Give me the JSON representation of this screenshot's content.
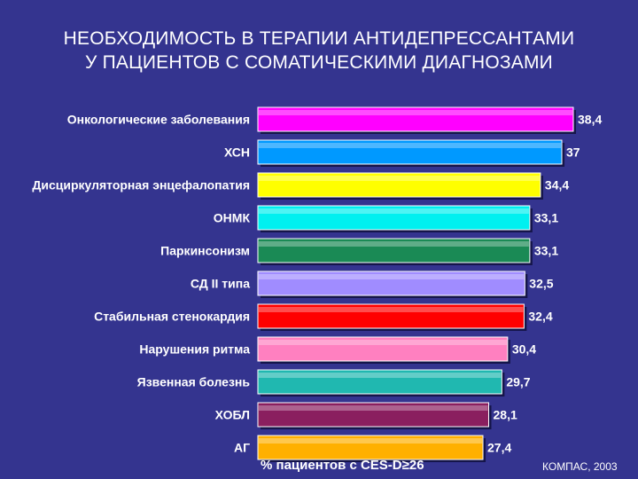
{
  "slide": {
    "title_line1": "НЕОБХОДИМОСТЬ В ТЕРАПИИ АНТИДЕПРЕССАНТАМИ",
    "title_line2": "У ПАЦИЕНТОВ С СОМАТИЧЕСКИМИ ДИАГНОЗАМИ",
    "source": "КОМПАС, 2003"
  },
  "chart_data": {
    "type": "bar",
    "orientation": "horizontal",
    "title": "НЕОБХОДИМОСТЬ В ТЕРАПИИ АНТИДЕПРЕССАНТАМИ У ПАЦИЕНТОВ С СОМАТИЧЕСКИМИ ДИАГНОЗАМИ",
    "xlabel": "% пациентов с CES-D≥26",
    "ylabel": "",
    "xlim": [
      0,
      38.4
    ],
    "grid": false,
    "legend": "none",
    "categories": [
      "Онкологические заболевания",
      "ХСН",
      "Дисциркуляторная энцефалопатия",
      "ОНМК",
      "Паркинсонизм",
      "СД II типа",
      "Стабильная стенокардия",
      "Нарушения ритма",
      "Язвенная болезнь",
      "ХОБЛ",
      "АГ"
    ],
    "values": [
      38.4,
      37,
      34.4,
      33.1,
      33.1,
      32.5,
      32.4,
      30.4,
      29.7,
      28.1,
      27.4
    ],
    "value_labels": [
      "38,4",
      "37",
      "34,4",
      "33,1",
      "33,1",
      "32,5",
      "32,4",
      "30,4",
      "29,7",
      "28,1",
      "27,4"
    ],
    "colors": [
      "#ff00ff",
      "#0099ff",
      "#ffff00",
      "#00f0f0",
      "#1a8a55",
      "#a08cff",
      "#ff0000",
      "#ff80c0",
      "#20b8b0",
      "#8a1f5f",
      "#ffb000"
    ]
  }
}
